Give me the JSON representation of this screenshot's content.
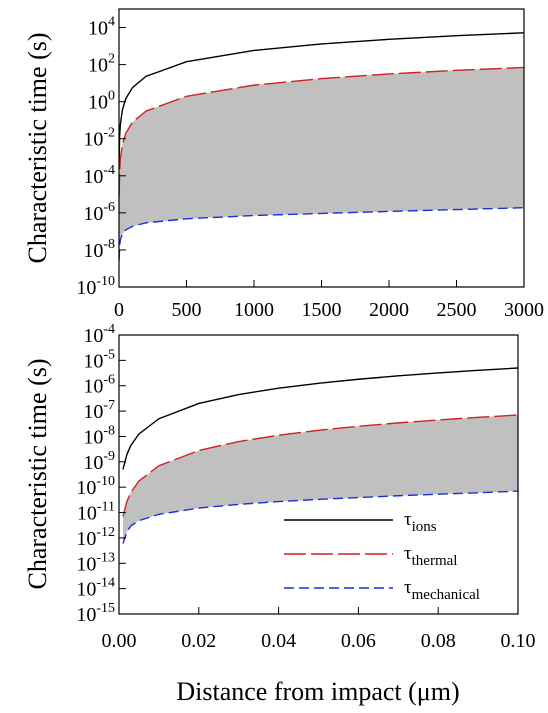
{
  "chart_data": [
    {
      "type": "line",
      "panel": "top",
      "ylabel": "Characteristic time (s)",
      "xlabel": "",
      "xlim": [
        0,
        3000
      ],
      "ylim_log10": [
        -10,
        5
      ],
      "yscale": "log",
      "grid": false,
      "x_ticks": [
        "0",
        "500",
        "1000",
        "1500",
        "2000",
        "2500",
        "3000"
      ],
      "y_ticks": [
        {
          "base": "10",
          "exp": "4"
        },
        {
          "base": "10",
          "exp": "2"
        },
        {
          "base": "10",
          "exp": "0"
        },
        {
          "base": "10",
          "exp": "-2"
        },
        {
          "base": "10",
          "exp": "-4"
        },
        {
          "base": "10",
          "exp": "-6"
        },
        {
          "base": "10",
          "exp": "-8"
        },
        {
          "base": "10",
          "exp": "-10"
        }
      ],
      "shaded_band": {
        "between": [
          "thermal",
          "mechanical"
        ],
        "color": "#c0c0c0"
      },
      "series": [
        {
          "key": "ions",
          "style": "solid",
          "color": "#000000",
          "x": [
            1,
            5,
            10,
            25,
            50,
            100,
            200,
            500,
            1000,
            1500,
            2000,
            2500,
            3000
          ],
          "y": [
            0.0006,
            0.0144,
            0.0578,
            0.361,
            1.44,
            5.78,
            23.1,
            144,
            578,
            1300,
            2310,
            3610,
            5200
          ]
        },
        {
          "key": "thermal",
          "style": "long-dash",
          "color": "#d42020",
          "x": [
            1,
            5,
            10,
            25,
            50,
            100,
            200,
            500,
            1000,
            1500,
            2000,
            2500,
            3000
          ],
          "y": [
            7.8e-06,
            0.000196,
            0.00078,
            0.0049,
            0.0196,
            0.078,
            0.31,
            1.96,
            7.8,
            17.6,
            31.3,
            48.9,
            70
          ]
        },
        {
          "key": "mechanical",
          "style": "dash",
          "color": "#1a2ee0",
          "x": [
            1,
            5,
            10,
            25,
            50,
            100,
            200,
            500,
            1000,
            1500,
            2000,
            2500,
            3000
          ],
          "y": [
            3e-09,
            1.6e-08,
            3.5e-08,
            7.1e-08,
            1.2e-07,
            1.9e-07,
            2.9e-07,
            4.8e-07,
            7.2e-07,
            9.3e-07,
            1.2e-06,
            1.5e-06,
            1.9e-06
          ]
        }
      ]
    },
    {
      "type": "line",
      "panel": "bottom",
      "ylabel": "Characteristic time (s)",
      "xlabel": "Distance from impact (μm)",
      "xlim": [
        0,
        0.1
      ],
      "ylim_log10": [
        -15,
        -4
      ],
      "yscale": "log",
      "grid": false,
      "legend": "bottom-right",
      "x_ticks": [
        "0.00",
        "0.02",
        "0.04",
        "0.06",
        "0.08",
        "0.10"
      ],
      "y_ticks": [
        {
          "base": "10",
          "exp": "-4"
        },
        {
          "base": "10",
          "exp": "-5"
        },
        {
          "base": "10",
          "exp": "-6"
        },
        {
          "base": "10",
          "exp": "-7"
        },
        {
          "base": "10",
          "exp": "-8"
        },
        {
          "base": "10",
          "exp": "-9"
        },
        {
          "base": "10",
          "exp": "-10"
        },
        {
          "base": "10",
          "exp": "-11"
        },
        {
          "base": "10",
          "exp": "-12"
        },
        {
          "base": "10",
          "exp": "-13"
        },
        {
          "base": "10",
          "exp": "-14"
        },
        {
          "base": "10",
          "exp": "-15"
        }
      ],
      "shaded_band": {
        "between": [
          "thermal",
          "mechanical"
        ],
        "color": "#c0c0c0"
      },
      "series": [
        {
          "key": "ions",
          "name": "τ",
          "subscript": "ions",
          "style": "solid",
          "color": "#000000",
          "x": [
            0.001,
            0.002,
            0.003,
            0.005,
            0.01,
            0.02,
            0.03,
            0.04,
            0.05,
            0.06,
            0.07,
            0.08,
            0.09,
            0.1
          ],
          "y": [
            5e-10,
            2e-09,
            4.5e-09,
            1.25e-08,
            5e-08,
            2e-07,
            4.5e-07,
            8e-07,
            1.25e-06,
            1.8e-06,
            2.45e-06,
            3.2e-06,
            4.05e-06,
            5e-06
          ]
        },
        {
          "key": "thermal",
          "name": "τ",
          "subscript": "thermal",
          "style": "long-dash",
          "color": "#d42020",
          "x": [
            0.001,
            0.002,
            0.003,
            0.005,
            0.01,
            0.02,
            0.03,
            0.04,
            0.05,
            0.06,
            0.07,
            0.08,
            0.09,
            0.1
          ],
          "y": [
            7e-12,
            2.8e-11,
            6.3e-11,
            1.75e-10,
            7e-10,
            2.8e-09,
            6.3e-09,
            1.12e-08,
            1.75e-08,
            2.52e-08,
            3.43e-08,
            4.48e-08,
            5.67e-08,
            7e-08
          ]
        },
        {
          "key": "mechanical",
          "name": "τ",
          "subscript": "mechanical",
          "style": "dash",
          "color": "#1a2ee0",
          "x": [
            0.001,
            0.002,
            0.003,
            0.005,
            0.01,
            0.02,
            0.03,
            0.04,
            0.05,
            0.06,
            0.07,
            0.08,
            0.09,
            0.1
          ],
          "y": [
            6e-13,
            1.8e-12,
            3e-12,
            4.8e-12,
            8.5e-12,
            1.5e-11,
            2.1e-11,
            2.7e-11,
            3.3e-11,
            3.9e-11,
            4.6e-11,
            5.3e-11,
            6e-11,
            7e-11
          ]
        }
      ]
    }
  ]
}
